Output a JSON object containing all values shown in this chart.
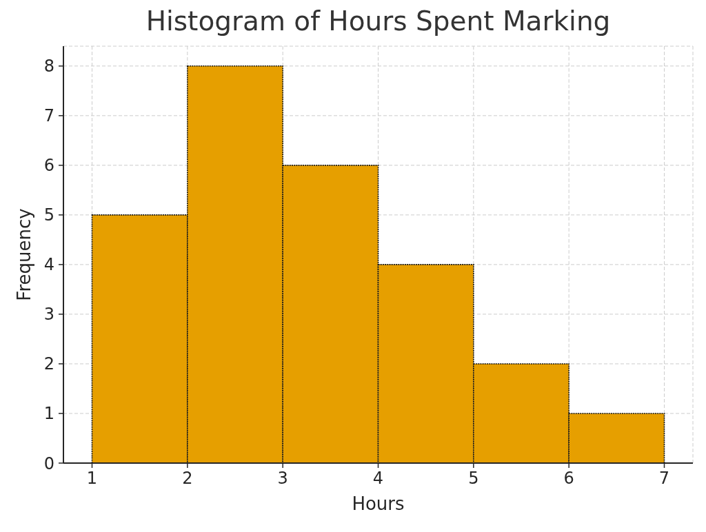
{
  "chart_data": {
    "type": "histogram",
    "title": "Histogram of Hours Spent Marking",
    "xlabel": "Hours",
    "ylabel": "Frequency",
    "bins": [
      1,
      2,
      3,
      4,
      5,
      6,
      7
    ],
    "values": [
      5,
      8,
      6,
      4,
      2,
      1
    ],
    "color": "#e69f00",
    "xlim": [
      0.7,
      7.3
    ],
    "ylim": [
      0,
      8.4
    ],
    "xticks": [
      1,
      2,
      3,
      4,
      5,
      6,
      7
    ],
    "yticks": [
      0,
      1,
      2,
      3,
      4,
      5,
      6,
      7,
      8
    ],
    "grid": true
  }
}
